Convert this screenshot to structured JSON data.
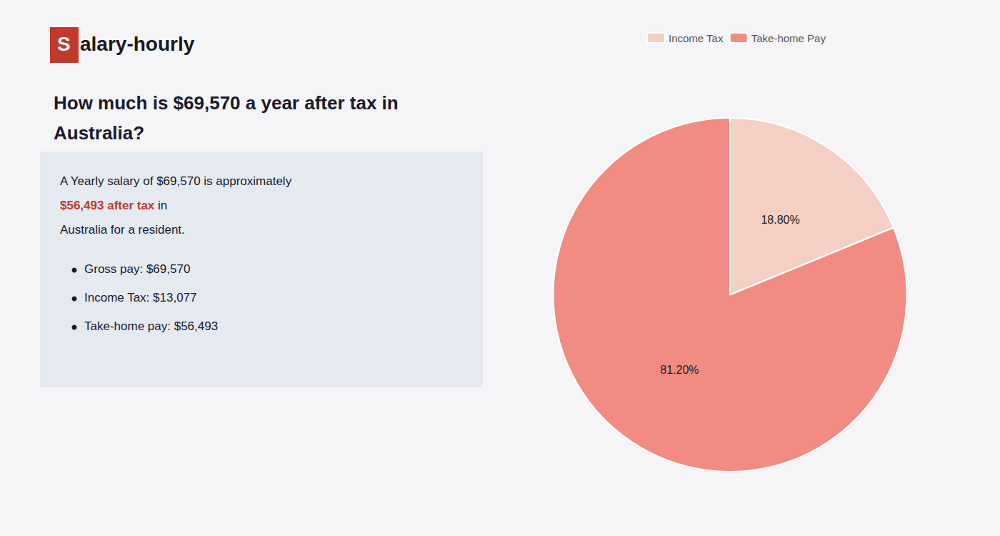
{
  "chart_data": {
    "type": "pie",
    "title": "How much is $69,570 a year after tax in\nAustralia?",
    "categories": [
      "Income Tax",
      "Take-home Pay"
    ],
    "values": [
      18.8,
      81.2
    ],
    "value_labels": [
      "18.80%",
      "81.20%"
    ],
    "data_labels": true,
    "colors": [
      "#f5cfc4",
      "#f28b82"
    ],
    "legend": "top",
    "annotations": [
      {
        "text": "S",
        "color": "#c0392b"
      },
      {
        "text": "alary-hourly"
      },
      {
        "text": "A Yearly salary of $69,570 is approximately "
      },
      {
        "text": "$56,493 after tax",
        "color": "#c0392b"
      },
      {
        "text": " in"
      },
      {
        "text": "Australia for a resident."
      },
      {
        "text": "Gross pay: $69,570"
      },
      {
        "text": "Income Tax: $13,077"
      },
      {
        "text": "Take-home pay: $56,493"
      }
    ]
  }
}
